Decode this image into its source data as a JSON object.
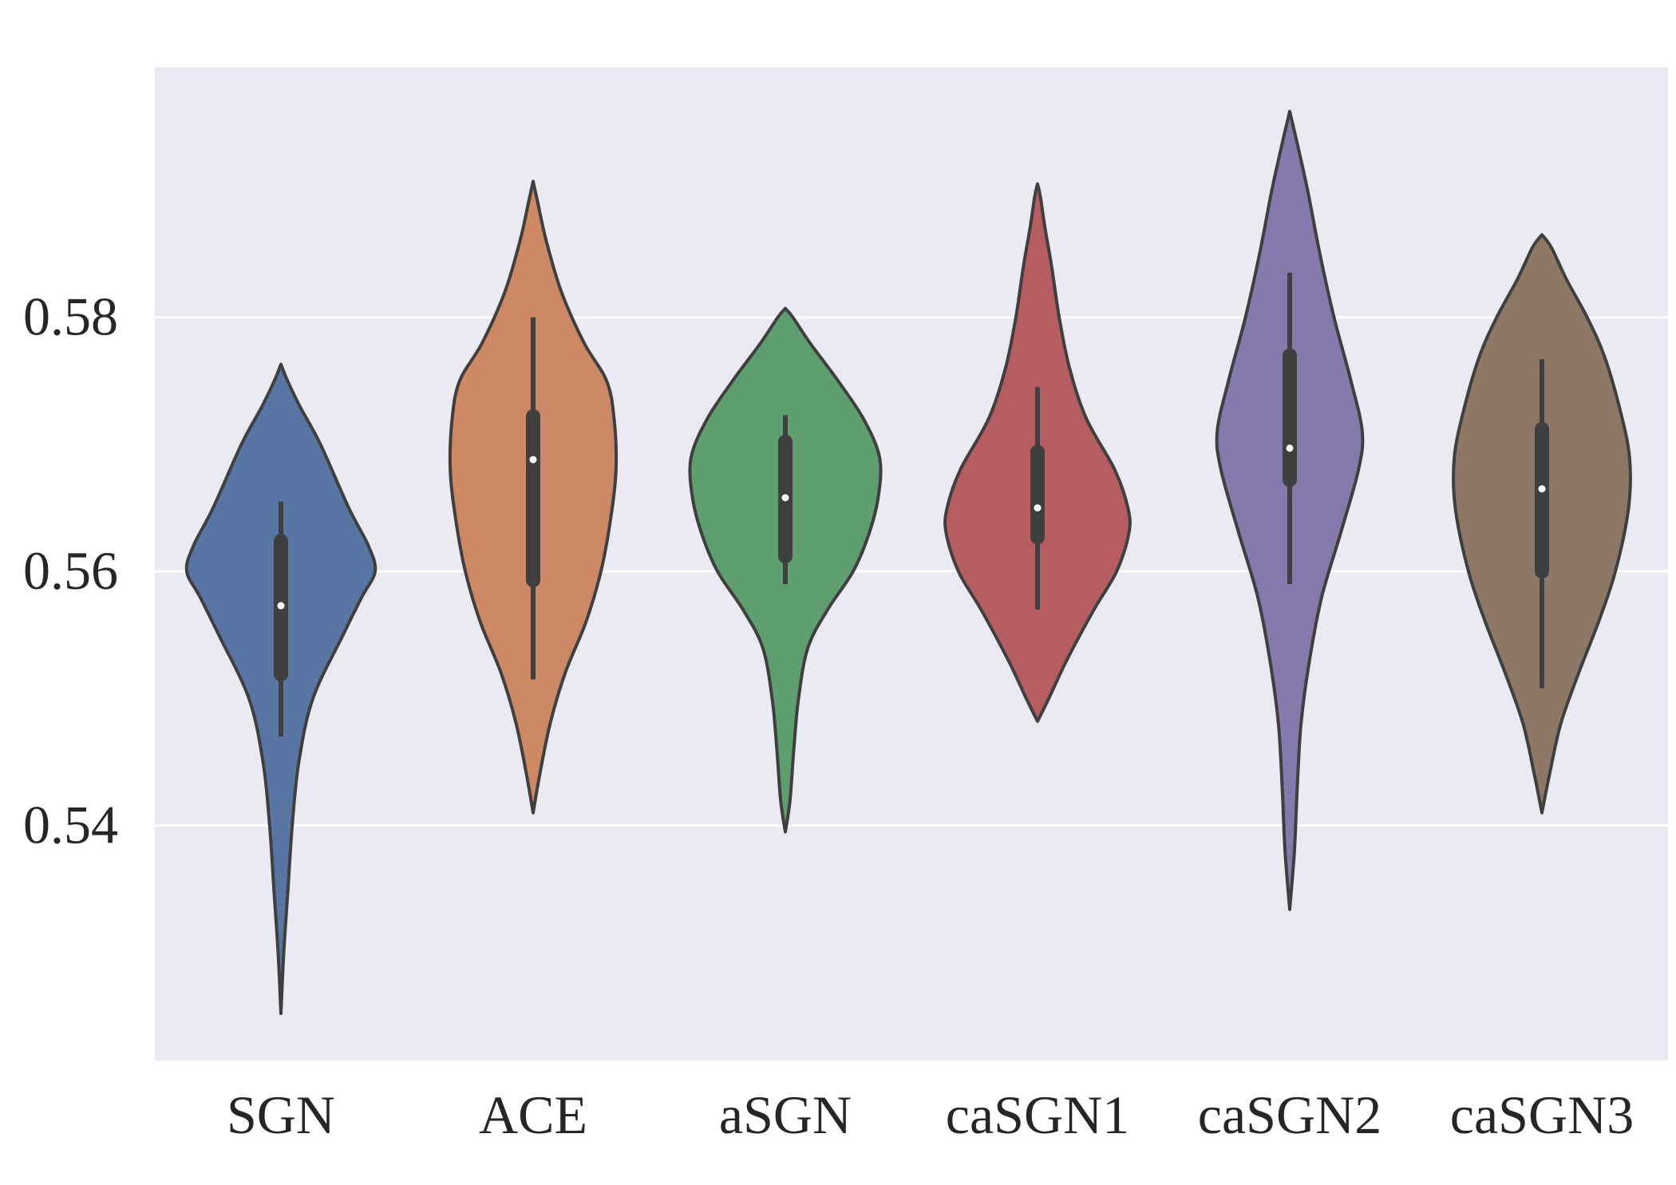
{
  "chart_data": {
    "type": "violin",
    "title": "",
    "xlabel": "",
    "ylabel": "",
    "ylim": [
      0.5215,
      0.5997
    ],
    "yticks": [
      0.54,
      0.56,
      0.58
    ],
    "ytick_labels": [
      "0.54",
      "0.56",
      "0.58"
    ],
    "grid": true,
    "background": "#EAEAF2",
    "categories": [
      "SGN",
      "ACE",
      "aSGN",
      "caSGN1",
      "caSGN2",
      "caSGN3"
    ],
    "colors": [
      "#5875A4",
      "#CC8963",
      "#5F9E6E",
      "#B55D60",
      "#857AAB",
      "#8D7866"
    ],
    "series": [
      {
        "name": "SGN",
        "min": 0.5252,
        "max": 0.5763,
        "q1": 0.5519,
        "median": 0.5573,
        "q3": 0.5624,
        "whisker_low": 0.547,
        "whisker_high": 0.5655,
        "density": [
          [
            0.5252,
            0.0
          ],
          [
            0.53,
            0.03
          ],
          [
            0.535,
            0.075
          ],
          [
            0.54,
            0.12
          ],
          [
            0.545,
            0.19
          ],
          [
            0.55,
            0.34
          ],
          [
            0.555,
            0.66
          ],
          [
            0.558,
            0.86
          ],
          [
            0.56,
            1.0
          ],
          [
            0.562,
            0.93
          ],
          [
            0.565,
            0.72
          ],
          [
            0.57,
            0.42
          ],
          [
            0.573,
            0.2
          ],
          [
            0.575,
            0.07
          ],
          [
            0.5763,
            0.0
          ]
        ]
      },
      {
        "name": "ACE",
        "min": 0.541,
        "max": 0.5907,
        "q1": 0.5593,
        "median": 0.5688,
        "q3": 0.5722,
        "whisker_low": 0.5515,
        "whisker_high": 0.58,
        "density": [
          [
            0.541,
            0.0
          ],
          [
            0.544,
            0.07
          ],
          [
            0.548,
            0.18
          ],
          [
            0.552,
            0.34
          ],
          [
            0.556,
            0.56
          ],
          [
            0.56,
            0.72
          ],
          [
            0.564,
            0.82
          ],
          [
            0.568,
            0.88
          ],
          [
            0.572,
            0.86
          ],
          [
            0.575,
            0.78
          ],
          [
            0.578,
            0.54
          ],
          [
            0.582,
            0.3
          ],
          [
            0.586,
            0.14
          ],
          [
            0.589,
            0.05
          ],
          [
            0.5907,
            0.0
          ]
        ]
      },
      {
        "name": "aSGN",
        "min": 0.5395,
        "max": 0.5807,
        "q1": 0.5612,
        "median": 0.5658,
        "q3": 0.5702,
        "whisker_low": 0.559,
        "whisker_high": 0.5723,
        "density": [
          [
            0.5395,
            0.0
          ],
          [
            0.542,
            0.05
          ],
          [
            0.546,
            0.09
          ],
          [
            0.55,
            0.14
          ],
          [
            0.554,
            0.24
          ],
          [
            0.557,
            0.45
          ],
          [
            0.56,
            0.72
          ],
          [
            0.563,
            0.89
          ],
          [
            0.566,
            0.99
          ],
          [
            0.569,
            1.0
          ],
          [
            0.572,
            0.83
          ],
          [
            0.575,
            0.56
          ],
          [
            0.578,
            0.26
          ],
          [
            0.58,
            0.08
          ],
          [
            0.5807,
            0.0
          ]
        ]
      },
      {
        "name": "caSGN1",
        "min": 0.5482,
        "max": 0.5905,
        "q1": 0.5627,
        "median": 0.565,
        "q3": 0.5694,
        "whisker_low": 0.557,
        "whisker_high": 0.5745,
        "density": [
          [
            0.5482,
            0.0
          ],
          [
            0.55,
            0.12
          ],
          [
            0.553,
            0.31
          ],
          [
            0.557,
            0.6
          ],
          [
            0.56,
            0.84
          ],
          [
            0.563,
            0.97
          ],
          [
            0.565,
            0.96
          ],
          [
            0.568,
            0.82
          ],
          [
            0.572,
            0.52
          ],
          [
            0.576,
            0.34
          ],
          [
            0.58,
            0.23
          ],
          [
            0.584,
            0.15
          ],
          [
            0.587,
            0.08
          ],
          [
            0.5895,
            0.03
          ],
          [
            0.5905,
            0.0
          ]
        ]
      },
      {
        "name": "caSGN2",
        "min": 0.5334,
        "max": 0.5962,
        "q1": 0.5672,
        "median": 0.5697,
        "q3": 0.577,
        "whisker_low": 0.559,
        "whisker_high": 0.5835,
        "density": [
          [
            0.5334,
            0.0
          ],
          [
            0.538,
            0.05
          ],
          [
            0.543,
            0.08
          ],
          [
            0.548,
            0.12
          ],
          [
            0.553,
            0.21
          ],
          [
            0.558,
            0.34
          ],
          [
            0.563,
            0.54
          ],
          [
            0.568,
            0.73
          ],
          [
            0.571,
            0.77
          ],
          [
            0.575,
            0.65
          ],
          [
            0.58,
            0.47
          ],
          [
            0.585,
            0.32
          ],
          [
            0.59,
            0.19
          ],
          [
            0.594,
            0.07
          ],
          [
            0.5962,
            0.0
          ]
        ]
      },
      {
        "name": "caSGN3",
        "min": 0.541,
        "max": 0.5865,
        "q1": 0.56,
        "median": 0.5665,
        "q3": 0.5712,
        "whisker_low": 0.5508,
        "whisker_high": 0.5767,
        "density": [
          [
            0.541,
            0.0
          ],
          [
            0.544,
            0.08
          ],
          [
            0.548,
            0.2
          ],
          [
            0.552,
            0.39
          ],
          [
            0.556,
            0.6
          ],
          [
            0.56,
            0.78
          ],
          [
            0.565,
            0.92
          ],
          [
            0.569,
            0.93
          ],
          [
            0.573,
            0.82
          ],
          [
            0.577,
            0.66
          ],
          [
            0.58,
            0.48
          ],
          [
            0.583,
            0.26
          ],
          [
            0.5855,
            0.1
          ],
          [
            0.5865,
            0.0
          ]
        ]
      }
    ]
  }
}
